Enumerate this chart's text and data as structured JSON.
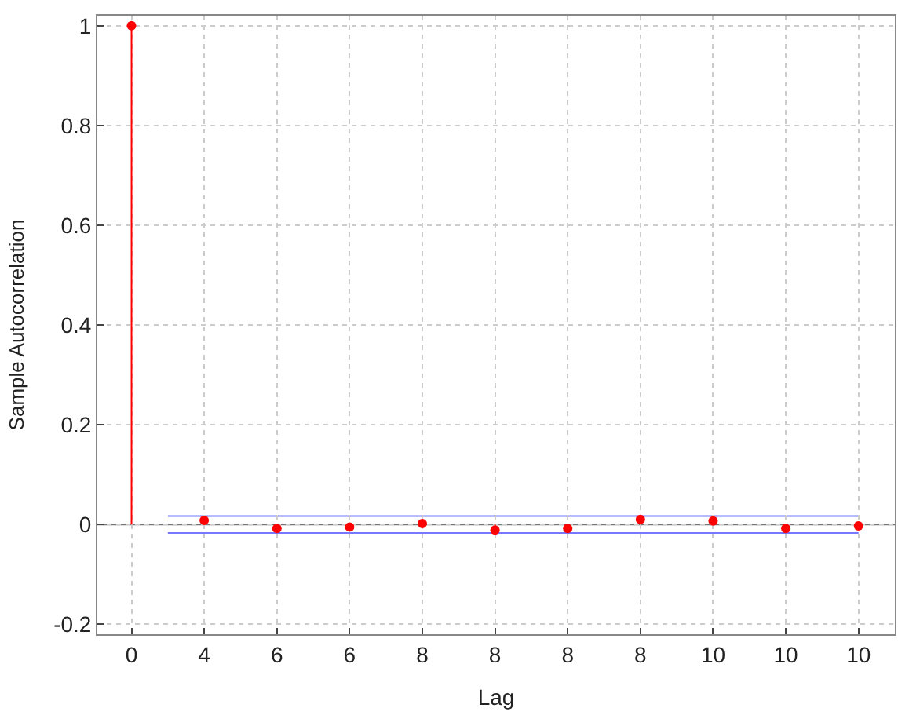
{
  "chart_data": {
    "type": "lollipop",
    "xlabel": "Lag",
    "ylabel": "Sample Autocorrelation",
    "categories": [
      "0",
      "4",
      "6",
      "6",
      "8",
      "8",
      "8",
      "8",
      "10",
      "10",
      "10"
    ],
    "series": [
      {
        "color": "#ff0000",
        "values": [
          1,
          0.008,
          -0.008,
          -0.005,
          0.002,
          -0.011,
          -0.008,
          0.01,
          0.007,
          -0.008,
          -0.003
        ]
      }
    ],
    "ylim": [
      -0.22,
      1.02
    ],
    "yticks": [
      -0.2,
      0,
      0.2,
      0.4,
      0.6,
      0.8,
      1
    ],
    "ref_lines": [
      {
        "axis": "y",
        "value": 0.017,
        "color": "#7777ff"
      },
      {
        "axis": "y",
        "value": -0.017,
        "color": "#7777ff"
      },
      {
        "axis": "y",
        "value": 0,
        "color": "#777777"
      }
    ],
    "grid": true,
    "marker": "circle"
  }
}
